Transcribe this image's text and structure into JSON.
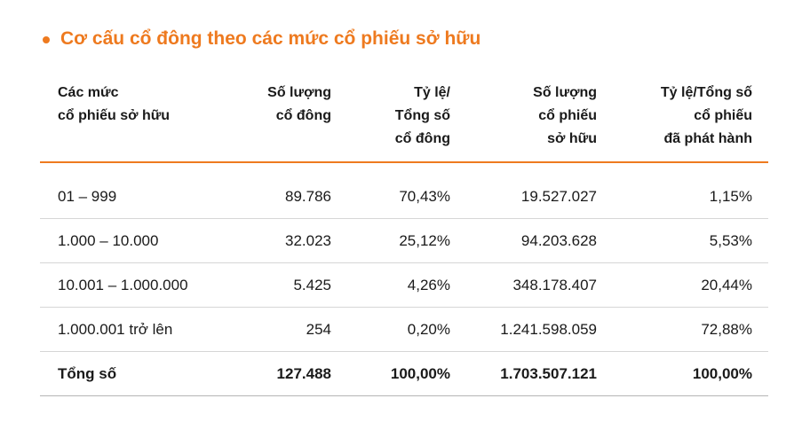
{
  "title": "Cơ cấu cổ đông theo các mức cổ phiếu sở hữu",
  "table": {
    "header": [
      [
        "Các mức",
        "cổ phiếu sở hữu"
      ],
      [
        "Số lượng",
        "cổ đông"
      ],
      [
        "Tỷ lệ/",
        "Tổng số",
        "cổ đông"
      ],
      [
        "Số lượng",
        "cổ phiếu",
        "sở hữu"
      ],
      [
        "Tỷ lệ/Tổng số",
        "cổ phiếu",
        "đã phát hành"
      ]
    ],
    "rows": [
      [
        "01 – 999",
        "89.786",
        "70,43%",
        "19.527.027",
        "1,15%"
      ],
      [
        "1.000 – 10.000",
        "32.023",
        "25,12%",
        "94.203.628",
        "5,53%"
      ],
      [
        "10.001 – 1.000.000",
        "5.425",
        "4,26%",
        "348.178.407",
        "20,44%"
      ],
      [
        "1.000.001 trở lên",
        "254",
        "0,20%",
        "1.241.598.059",
        "72,88%"
      ]
    ],
    "total": [
      "Tổng số",
      "127.488",
      "100,00%",
      "1.703.507.121",
      "100,00%"
    ]
  }
}
